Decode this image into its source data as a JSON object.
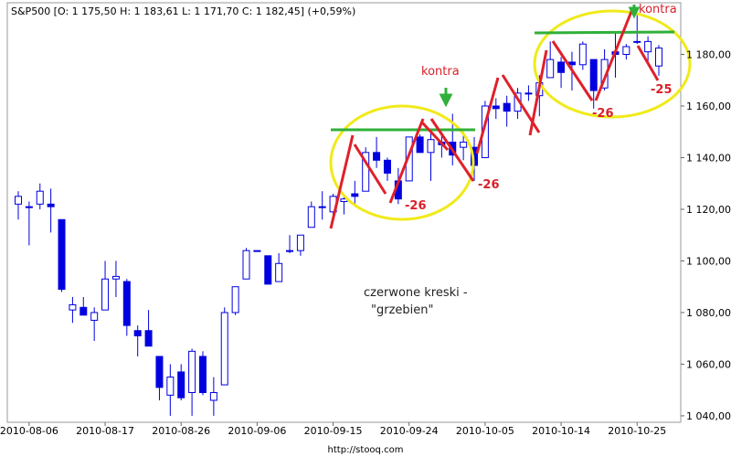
{
  "chart_data": {
    "type": "candlestick",
    "title": "S&P500 [O: 1 175,50  H: 1 183,61  L: 1 171,70  C: 1 182,45] (+0,59%)",
    "categories": [
      null,
      "2010-08-06",
      null,
      null,
      null,
      null,
      null,
      null,
      "2010-08-17",
      null,
      null,
      null,
      null,
      null,
      null,
      "2010-08-26",
      null,
      null,
      null,
      null,
      null,
      null,
      "2010-09-06",
      null,
      null,
      null,
      null,
      null,
      null,
      "2010-09-15",
      null,
      null,
      null,
      null,
      null,
      null,
      "2010-09-24",
      null,
      null,
      null,
      null,
      null,
      null,
      "2010-10-05",
      null,
      null,
      null,
      null,
      null,
      null,
      "2010-10-14",
      null,
      null,
      null,
      null,
      null,
      null,
      "2010-10-25",
      null,
      null
    ],
    "open": [
      1122,
      1121,
      1122,
      1122,
      1116,
      1081,
      1082,
      1077,
      1081,
      1093,
      1092,
      1073,
      1073,
      1063,
      1048,
      1057,
      1049,
      1063,
      1046,
      1052,
      1080,
      1093,
      1104,
      1102,
      1092,
      1104,
      1104,
      1113,
      1121,
      1119,
      1123,
      1126,
      1127,
      1142,
      1139,
      1131,
      1131,
      1148,
      1142,
      1146,
      1146,
      1144,
      1144,
      1140,
      1160,
      1161,
      1158,
      1165,
      1164,
      1171,
      1177,
      1177,
      1176,
      1178,
      1167,
      1181,
      1180,
      1185,
      1181,
      1175.5
    ],
    "high": [
      1127,
      1123,
      1130,
      1128,
      1116,
      1086,
      1086,
      1082,
      1100,
      1100,
      1093,
      1075,
      1081,
      1063,
      1060,
      1060,
      1066,
      1065,
      1055,
      1082,
      1090,
      1105,
      1104,
      1102,
      1103,
      1110,
      1110,
      1123,
      1127,
      1126,
      1126,
      1131,
      1144,
      1148,
      1140,
      1136,
      1148,
      1149,
      1150,
      1149,
      1157,
      1150,
      1148,
      1162,
      1163,
      1164,
      1167,
      1168,
      1172,
      1185,
      1179,
      1181,
      1185,
      1178,
      1182,
      1189,
      1184,
      1196,
      1187,
      1183.61
    ],
    "low": [
      1116,
      1106,
      1120,
      1111,
      1088,
      1076,
      1079,
      1069,
      1081,
      1086,
      1071,
      1063,
      1067,
      1046,
      1040,
      1046,
      1040,
      1048,
      1040,
      1052,
      1079,
      1093,
      1104,
      1091,
      1092,
      1103,
      1102,
      1113,
      1116,
      1115,
      1118,
      1121,
      1127,
      1136,
      1131,
      1122,
      1131,
      1142,
      1131,
      1140,
      1137,
      1139,
      1131,
      1140,
      1155,
      1152,
      1155,
      1162,
      1156,
      1171,
      1167,
      1166,
      1174,
      1159,
      1166,
      1171,
      1178,
      1184,
      1177,
      1171.7
    ],
    "close": [
      1125,
      1121,
      1127,
      1121,
      1089,
      1083,
      1079,
      1080,
      1093,
      1094,
      1075,
      1071,
      1067,
      1051,
      1055,
      1047,
      1065,
      1049,
      1049,
      1080,
      1090,
      1104,
      1104,
      1091,
      1099,
      1104,
      1110,
      1121,
      1121,
      1125,
      1124,
      1125,
      1142,
      1139,
      1134,
      1124,
      1148,
      1142,
      1147,
      1145,
      1141,
      1146,
      1137,
      1160,
      1159,
      1158,
      1165,
      1165,
      1169,
      1178,
      1173,
      1176,
      1184,
      1166,
      1178,
      1180,
      1183,
      1185,
      1185,
      1182.45
    ],
    "color": "#0000e0",
    "ylim": [
      1037.5,
      1200
    ],
    "yticks": [
      {
        "value": 1040,
        "label": "1 040,00"
      },
      {
        "value": 1060,
        "label": "1 060,00"
      },
      {
        "value": 1080,
        "label": "1 080,00"
      },
      {
        "value": 1100,
        "label": "1 100,00"
      },
      {
        "value": 1120,
        "label": "1 120,00"
      },
      {
        "value": 1140,
        "label": "1 140,00"
      },
      {
        "value": 1160,
        "label": "1 160,00"
      },
      {
        "value": 1180,
        "label": "1 180,00"
      }
    ],
    "grid": false,
    "annotations": [
      "kontra",
      "kontra",
      "-26",
      "-26",
      "-26",
      "-25",
      "czerwone  kreski -",
      "\"grzebien\""
    ],
    "source": "http://stooq.com"
  }
}
